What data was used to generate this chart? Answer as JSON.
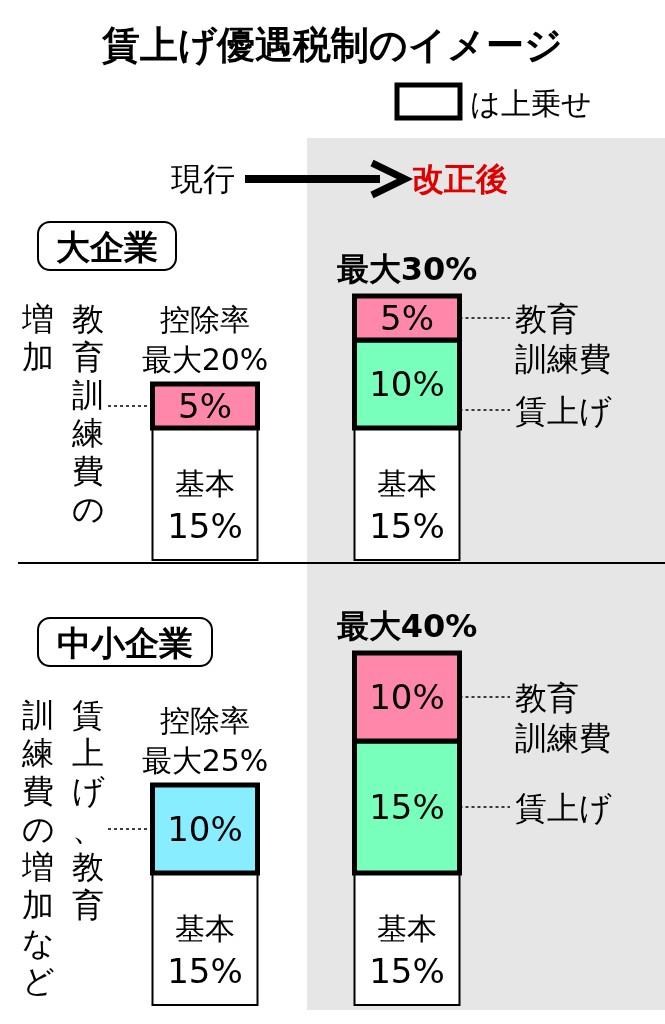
{
  "chart_data": [
    {
      "type": "bar",
      "stacked": true,
      "legend": "right",
      "title": "賃上げ優遇税制のイメージ",
      "subtitle": "大企業",
      "categories": [
        "現行",
        "改正後"
      ],
      "series": [
        {
          "name": "基本",
          "color": "#ffffff",
          "values": [
            15,
            15
          ],
          "value_labels": [
            "15%",
            "15%"
          ]
        },
        {
          "name": "教育訓練費の増加",
          "color": "#ff88aa",
          "values": [
            5,
            null
          ],
          "value_labels": [
            "5%",
            null
          ]
        },
        {
          "name": "賃上げ",
          "color": "#77ffbb",
          "values": [
            null,
            10
          ],
          "value_labels": [
            null,
            "10%"
          ]
        },
        {
          "name": "教育訓練費",
          "color": "#ff88aa",
          "values": [
            null,
            5
          ],
          "value_labels": [
            null,
            "5%"
          ]
        }
      ],
      "annotations": [
        "は上乗せ",
        {
          "text": "控除率最大20%",
          "x": "現行",
          "y": 20
        },
        {
          "text": "最大30%",
          "x": "改正後",
          "y": 30
        }
      ]
    },
    {
      "type": "bar",
      "stacked": true,
      "legend": "right",
      "title": "中小企業",
      "categories": [
        "現行",
        "改正後"
      ],
      "tick_labels": false,
      "series": [
        {
          "name": "基本",
          "color": "#ffffff",
          "values": [
            15,
            15
          ],
          "value_labels": [
            "15%",
            "15%"
          ]
        },
        {
          "name": "賃上げ、教育訓練費の増加など",
          "color": "#88eeff",
          "values": [
            10,
            null
          ],
          "value_labels": [
            "10%",
            null
          ]
        },
        {
          "name": "賃上げ",
          "color": "#77ffbb",
          "values": [
            null,
            15
          ],
          "value_labels": [
            null,
            "15%"
          ]
        },
        {
          "name": "教育訓練費",
          "color": "#ff88aa",
          "values": [
            null,
            10
          ],
          "value_labels": [
            null,
            "10%"
          ]
        }
      ],
      "annotations": [
        {
          "text": "控除率最大25%",
          "x": "現行",
          "y": 25
        },
        {
          "text": "最大40%",
          "x": "改正後",
          "y": 40
        }
      ]
    }
  ]
}
